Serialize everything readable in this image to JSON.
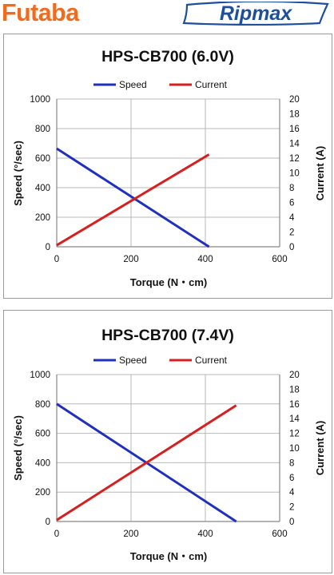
{
  "header": {
    "left_logo": "Futaba",
    "right_logo": "Ripmax",
    "colors": {
      "futaba": "#f26b1d",
      "ripmax": "#1d4f9c"
    }
  },
  "colors": {
    "speed": "#1f2fbf",
    "current": "#d81f1f",
    "axis": "#888888",
    "grid": "#b8b8b8"
  },
  "chart_data": [
    {
      "type": "line",
      "title": "HPS-CB700 (6.0V)",
      "xlabel": "Torque  (N・cm)",
      "ylabel": "Speed (°/sec)",
      "y2label": "Current (A)",
      "xlim": [
        0,
        600
      ],
      "ylim": [
        0,
        1000
      ],
      "y2lim": [
        0,
        20
      ],
      "xticks": [
        "0",
        "200",
        "400",
        "600"
      ],
      "yticks": [
        "0",
        "200",
        "400",
        "600",
        "800",
        "1000"
      ],
      "y2ticks": [
        "0",
        "2",
        "4",
        "6",
        "8",
        "10",
        "12",
        "14",
        "16",
        "18",
        "20"
      ],
      "grid": true,
      "legend_position": "top-center",
      "series": [
        {
          "name": "Speed",
          "axis": "left",
          "x": [
            0,
            410
          ],
          "y": [
            665,
            0
          ]
        },
        {
          "name": "Current",
          "axis": "right",
          "x": [
            0,
            410
          ],
          "y": [
            0.2,
            12.5
          ]
        }
      ]
    },
    {
      "type": "line",
      "title": "HPS-CB700 (7.4V)",
      "xlabel": "Torque  (N・cm)",
      "ylabel": "Speed (°/sec)",
      "y2label": "Current (A)",
      "xlim": [
        0,
        600
      ],
      "ylim": [
        0,
        1000
      ],
      "y2lim": [
        0,
        20
      ],
      "xticks": [
        "0",
        "200",
        "400",
        "600"
      ],
      "yticks": [
        "0",
        "200",
        "400",
        "600",
        "800",
        "1000"
      ],
      "y2ticks": [
        "0",
        "2",
        "4",
        "6",
        "8",
        "10",
        "12",
        "14",
        "16",
        "18",
        "20"
      ],
      "grid": true,
      "legend_position": "top-center",
      "series": [
        {
          "name": "Speed",
          "axis": "left",
          "x": [
            0,
            483
          ],
          "y": [
            800,
            0
          ]
        },
        {
          "name": "Current",
          "axis": "right",
          "x": [
            0,
            483
          ],
          "y": [
            0.2,
            15.8
          ]
        }
      ]
    }
  ]
}
